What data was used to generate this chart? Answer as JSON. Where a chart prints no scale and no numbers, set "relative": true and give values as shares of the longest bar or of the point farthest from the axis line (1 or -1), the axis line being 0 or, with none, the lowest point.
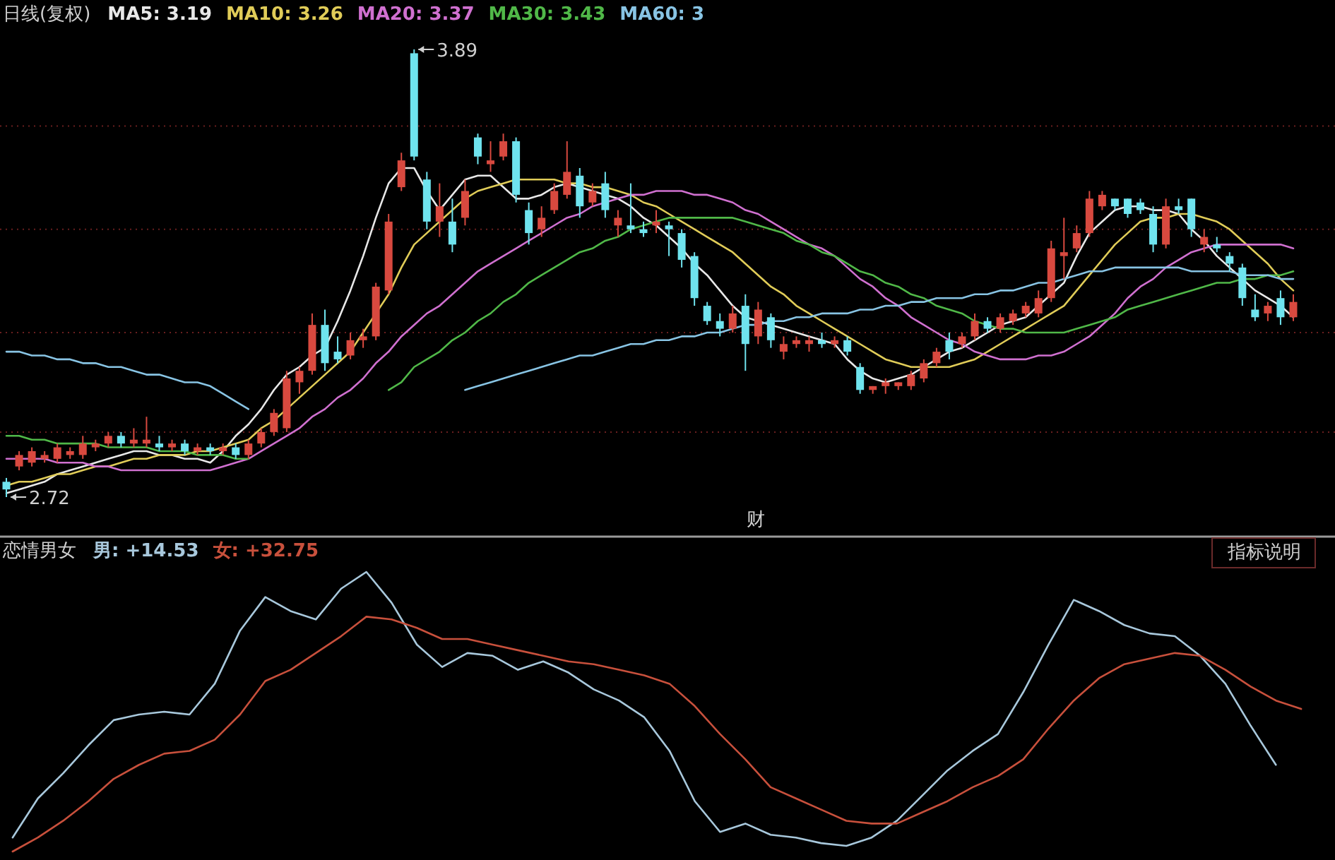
{
  "chart_data": [
    {
      "type": "candlestick",
      "title": "日线(复权)",
      "yticks": [
        {
          "value": 3.69,
          "label": null
        },
        {
          "value": 3.42,
          "label": null
        },
        {
          "value": 3.15,
          "label": null
        },
        {
          "value": 2.89,
          "label": null
        }
      ],
      "grid": "y",
      "categories": [
        null,
        null,
        null,
        null,
        null,
        null,
        null,
        null,
        null,
        null,
        null,
        null,
        null,
        null,
        null,
        null,
        null,
        null,
        null,
        null,
        null,
        null,
        null,
        null,
        null,
        null,
        null,
        null,
        null,
        null,
        null,
        null,
        null,
        null,
        null,
        null,
        null,
        null,
        null,
        null,
        null,
        null,
        null,
        null,
        null,
        null,
        null,
        null,
        null,
        null,
        null,
        null,
        null,
        null,
        null,
        null,
        null,
        null,
        null,
        null,
        null,
        null,
        null,
        null,
        null,
        null,
        null,
        null,
        null,
        null,
        null,
        null,
        null,
        null,
        null,
        null,
        null,
        null,
        null,
        null,
        null,
        null,
        null,
        null,
        null,
        null,
        null,
        null,
        null,
        null,
        null,
        null,
        null,
        null,
        null,
        null,
        null,
        null,
        null,
        null,
        null,
        null
      ],
      "ohlc": [
        [
          2.76,
          2.77,
          2.72,
          2.74
        ],
        [
          2.8,
          2.84,
          2.79,
          2.83
        ],
        [
          2.81,
          2.85,
          2.8,
          2.84
        ],
        [
          2.82,
          2.84,
          2.81,
          2.83
        ],
        [
          2.82,
          2.86,
          2.81,
          2.85
        ],
        [
          2.83,
          2.85,
          2.82,
          2.84
        ],
        [
          2.83,
          2.88,
          2.82,
          2.86
        ],
        [
          2.85,
          2.87,
          2.84,
          2.86
        ],
        [
          2.86,
          2.89,
          2.85,
          2.88
        ],
        [
          2.88,
          2.89,
          2.85,
          2.86
        ],
        [
          2.86,
          2.9,
          2.85,
          2.87
        ],
        [
          2.86,
          2.93,
          2.85,
          2.87
        ],
        [
          2.86,
          2.88,
          2.84,
          2.85
        ],
        [
          2.85,
          2.87,
          2.84,
          2.86
        ],
        [
          2.86,
          2.87,
          2.83,
          2.84
        ],
        [
          2.84,
          2.86,
          2.83,
          2.85
        ],
        [
          2.85,
          2.86,
          2.83,
          2.84
        ],
        [
          2.84,
          2.86,
          2.83,
          2.85
        ],
        [
          2.85,
          2.86,
          2.82,
          2.83
        ],
        [
          2.83,
          2.87,
          2.82,
          2.86
        ],
        [
          2.86,
          2.9,
          2.85,
          2.89
        ],
        [
          2.89,
          2.95,
          2.88,
          2.94
        ],
        [
          2.9,
          3.05,
          2.89,
          3.03
        ],
        [
          3.02,
          3.06,
          2.99,
          3.05
        ],
        [
          3.05,
          3.2,
          3.04,
          3.17
        ],
        [
          3.17,
          3.21,
          3.05,
          3.07
        ],
        [
          3.1,
          3.14,
          3.07,
          3.08
        ],
        [
          3.09,
          3.15,
          3.08,
          3.13
        ],
        [
          3.13,
          3.16,
          3.11,
          3.14
        ],
        [
          3.14,
          3.28,
          3.13,
          3.27
        ],
        [
          3.26,
          3.46,
          3.25,
          3.44
        ],
        [
          3.53,
          3.62,
          3.52,
          3.6
        ],
        [
          3.88,
          3.89,
          3.6,
          3.61
        ],
        [
          3.55,
          3.57,
          3.42,
          3.44
        ],
        [
          3.44,
          3.54,
          3.4,
          3.48
        ],
        [
          3.44,
          3.5,
          3.36,
          3.38
        ],
        [
          3.45,
          3.55,
          3.43,
          3.52
        ],
        [
          3.66,
          3.67,
          3.59,
          3.61
        ],
        [
          3.59,
          3.65,
          3.57,
          3.6
        ],
        [
          3.61,
          3.67,
          3.6,
          3.65
        ],
        [
          3.65,
          3.66,
          3.49,
          3.51
        ],
        [
          3.47,
          3.49,
          3.38,
          3.41
        ],
        [
          3.42,
          3.48,
          3.4,
          3.45
        ],
        [
          3.47,
          3.54,
          3.46,
          3.52
        ],
        [
          3.51,
          3.65,
          3.5,
          3.57
        ],
        [
          3.56,
          3.58,
          3.45,
          3.48
        ],
        [
          3.49,
          3.54,
          3.48,
          3.52
        ],
        [
          3.54,
          3.57,
          3.45,
          3.47
        ],
        [
          3.43,
          3.47,
          3.4,
          3.45
        ],
        [
          3.43,
          3.54,
          3.41,
          3.42
        ],
        [
          3.42,
          3.44,
          3.4,
          3.41
        ],
        [
          3.43,
          3.47,
          3.41,
          3.44
        ],
        [
          3.43,
          3.44,
          3.35,
          3.42
        ],
        [
          3.41,
          3.42,
          3.32,
          3.34
        ],
        [
          3.35,
          3.36,
          3.22,
          3.24
        ],
        [
          3.22,
          3.23,
          3.17,
          3.18
        ],
        [
          3.18,
          3.2,
          3.14,
          3.16
        ],
        [
          3.16,
          3.22,
          3.15,
          3.2
        ],
        [
          3.22,
          3.25,
          3.05,
          3.12
        ],
        [
          3.14,
          3.23,
          3.12,
          3.21
        ],
        [
          3.19,
          3.2,
          3.11,
          3.13
        ],
        [
          3.1,
          3.14,
          3.08,
          3.12
        ],
        [
          3.12,
          3.14,
          3.11,
          3.13
        ],
        [
          3.12,
          3.14,
          3.1,
          3.13
        ],
        [
          3.13,
          3.15,
          3.11,
          3.12
        ],
        [
          3.12,
          3.14,
          3.11,
          3.13
        ],
        [
          3.13,
          3.14,
          3.09,
          3.1
        ],
        [
          3.06,
          3.07,
          2.99,
          3.0
        ],
        [
          3.0,
          3.01,
          2.99,
          3.01
        ],
        [
          3.01,
          3.03,
          2.99,
          3.02
        ],
        [
          3.01,
          3.02,
          3.0,
          3.02
        ],
        [
          3.01,
          3.05,
          3.0,
          3.04
        ],
        [
          3.03,
          3.08,
          3.02,
          3.07
        ],
        [
          3.07,
          3.11,
          3.06,
          3.1
        ],
        [
          3.13,
          3.15,
          3.08,
          3.1
        ],
        [
          3.12,
          3.15,
          3.11,
          3.14
        ],
        [
          3.14,
          3.2,
          3.13,
          3.18
        ],
        [
          3.18,
          3.19,
          3.15,
          3.16
        ],
        [
          3.16,
          3.2,
          3.15,
          3.19
        ],
        [
          3.18,
          3.21,
          3.17,
          3.2
        ],
        [
          3.2,
          3.23,
          3.19,
          3.22
        ],
        [
          3.2,
          3.26,
          3.19,
          3.24
        ],
        [
          3.24,
          3.39,
          3.23,
          3.37
        ],
        [
          3.35,
          3.45,
          3.29,
          3.36
        ],
        [
          3.37,
          3.43,
          3.36,
          3.41
        ],
        [
          3.41,
          3.52,
          3.4,
          3.5
        ],
        [
          3.48,
          3.52,
          3.47,
          3.51
        ],
        [
          3.5,
          3.5,
          3.47,
          3.48
        ],
        [
          3.5,
          3.5,
          3.45,
          3.46
        ],
        [
          3.49,
          3.5,
          3.46,
          3.47
        ],
        [
          3.46,
          3.48,
          3.36,
          3.38
        ],
        [
          3.38,
          3.5,
          3.37,
          3.48
        ],
        [
          3.48,
          3.5,
          3.46,
          3.47
        ],
        [
          3.5,
          3.5,
          3.4,
          3.42
        ],
        [
          3.38,
          3.42,
          3.36,
          3.4
        ],
        [
          3.38,
          3.4,
          3.36,
          3.37
        ],
        [
          3.35,
          3.36,
          3.31,
          3.33
        ],
        [
          3.32,
          3.33,
          3.22,
          3.24
        ],
        [
          3.21,
          3.25,
          3.18,
          3.19
        ],
        [
          3.2,
          3.23,
          3.18,
          3.22
        ],
        [
          3.24,
          3.26,
          3.17,
          3.19
        ],
        [
          3.19,
          3.25,
          3.18,
          3.23
        ]
      ],
      "series": [
        {
          "name": "MA5: 3.19",
          "type": "line",
          "color": "#e8e8e8",
          "values": [
            2.73,
            2.74,
            2.75,
            2.76,
            2.78,
            2.79,
            2.8,
            2.81,
            2.82,
            2.83,
            2.84,
            2.84,
            2.83,
            2.83,
            2.82,
            2.82,
            2.81,
            2.84,
            2.88,
            2.91,
            2.95,
            3.0,
            3.04,
            3.06,
            3.09,
            3.11,
            3.18,
            3.26,
            3.35,
            3.45,
            3.54,
            3.58,
            3.58,
            3.52,
            3.47,
            3.51,
            3.55,
            3.56,
            3.56,
            3.53,
            3.5,
            3.5,
            3.51,
            3.53,
            3.54,
            3.53,
            3.52,
            3.51,
            3.5,
            3.48,
            3.45,
            3.43,
            3.4,
            3.37,
            3.33,
            3.3,
            3.26,
            3.22,
            3.19,
            3.18,
            3.17,
            3.16,
            3.15,
            3.14,
            3.13,
            3.12,
            3.08,
            3.05,
            3.03,
            3.02,
            3.03,
            3.04,
            3.06,
            3.08,
            3.1,
            3.11,
            3.13,
            3.15,
            3.17,
            3.18,
            3.19,
            3.22,
            3.25,
            3.28,
            3.35,
            3.41,
            3.44,
            3.47,
            3.48,
            3.48,
            3.47,
            3.47,
            3.46,
            3.42,
            3.39,
            3.35,
            3.32,
            3.29,
            3.26,
            3.24,
            3.22,
            3.19
          ]
        },
        {
          "name": "MA10: 3.26",
          "type": "line",
          "color": "#e0cc58",
          "values": [
            2.75,
            2.76,
            2.76,
            2.77,
            2.78,
            2.78,
            2.79,
            2.8,
            2.8,
            2.81,
            2.82,
            2.82,
            2.83,
            2.83,
            2.83,
            2.84,
            2.84,
            2.85,
            2.86,
            2.87,
            2.9,
            2.92,
            2.95,
            2.98,
            3.01,
            3.04,
            3.07,
            3.1,
            3.15,
            3.2,
            3.25,
            3.32,
            3.38,
            3.41,
            3.44,
            3.47,
            3.5,
            3.52,
            3.53,
            3.54,
            3.55,
            3.55,
            3.55,
            3.55,
            3.54,
            3.54,
            3.53,
            3.53,
            3.52,
            3.51,
            3.49,
            3.48,
            3.46,
            3.44,
            3.42,
            3.4,
            3.38,
            3.36,
            3.33,
            3.3,
            3.27,
            3.25,
            3.22,
            3.2,
            3.18,
            3.16,
            3.14,
            3.12,
            3.1,
            3.08,
            3.07,
            3.06,
            3.06,
            3.06,
            3.06,
            3.07,
            3.08,
            3.1,
            3.12,
            3.14,
            3.16,
            3.18,
            3.2,
            3.22,
            3.26,
            3.3,
            3.34,
            3.38,
            3.41,
            3.44,
            3.45,
            3.45,
            3.46,
            3.46,
            3.45,
            3.44,
            3.42,
            3.39,
            3.36,
            3.33,
            3.29,
            3.26
          ]
        },
        {
          "name": "MA20: 3.37",
          "type": "line",
          "color": "#d070d0",
          "values": [
            2.82,
            2.82,
            2.82,
            2.82,
            2.81,
            2.81,
            2.81,
            2.8,
            2.8,
            2.79,
            2.79,
            2.79,
            2.79,
            2.79,
            2.79,
            2.79,
            2.79,
            2.8,
            2.81,
            2.82,
            2.84,
            2.86,
            2.88,
            2.9,
            2.93,
            2.95,
            2.98,
            3.0,
            3.03,
            3.07,
            3.1,
            3.14,
            3.17,
            3.2,
            3.22,
            3.25,
            3.28,
            3.31,
            3.33,
            3.35,
            3.37,
            3.39,
            3.41,
            3.43,
            3.45,
            3.46,
            3.48,
            3.49,
            3.5,
            3.51,
            3.51,
            3.52,
            3.52,
            3.52,
            3.51,
            3.51,
            3.5,
            3.49,
            3.47,
            3.46,
            3.44,
            3.42,
            3.4,
            3.38,
            3.37,
            3.35,
            3.32,
            3.29,
            3.27,
            3.24,
            3.22,
            3.19,
            3.17,
            3.15,
            3.13,
            3.12,
            3.1,
            3.09,
            3.08,
            3.08,
            3.08,
            3.09,
            3.09,
            3.1,
            3.12,
            3.14,
            3.17,
            3.2,
            3.24,
            3.27,
            3.29,
            3.32,
            3.34,
            3.36,
            3.37,
            3.38,
            3.38,
            3.38,
            3.38,
            3.38,
            3.38,
            3.37
          ]
        },
        {
          "name": "MA30: 3.43",
          "type": "line",
          "color": "#50b848",
          "values": [
            2.88,
            2.88,
            2.87,
            2.87,
            2.86,
            2.86,
            2.86,
            2.86,
            2.85,
            2.85,
            2.85,
            2.85,
            2.84,
            2.84,
            2.84,
            2.83,
            2.83,
            2.83,
            2.82,
            2.82,
            null,
            null,
            null,
            null,
            null,
            null,
            null,
            null,
            null,
            null,
            3.0,
            3.02,
            3.06,
            3.08,
            3.1,
            3.13,
            3.15,
            3.18,
            3.2,
            3.23,
            3.25,
            3.28,
            3.3,
            3.32,
            3.34,
            3.36,
            3.37,
            3.39,
            3.4,
            3.42,
            3.43,
            3.44,
            3.45,
            3.45,
            3.45,
            3.45,
            3.45,
            3.45,
            3.44,
            3.43,
            3.42,
            3.41,
            3.39,
            3.38,
            3.36,
            3.35,
            3.33,
            3.31,
            3.3,
            3.28,
            3.27,
            3.25,
            3.24,
            3.22,
            3.21,
            3.2,
            3.18,
            3.17,
            3.16,
            3.16,
            3.15,
            3.15,
            3.15,
            3.15,
            3.16,
            3.17,
            3.18,
            3.19,
            3.21,
            3.22,
            3.23,
            3.24,
            3.25,
            3.26,
            3.27,
            3.28,
            3.28,
            3.29,
            3.29,
            3.3,
            3.3,
            3.31
          ]
        },
        {
          "name": "MA60: 3",
          "type": "line",
          "color": "#88c4e4",
          "values": [
            3.1,
            3.1,
            3.09,
            3.09,
            3.08,
            3.08,
            3.07,
            3.07,
            3.06,
            3.06,
            3.05,
            3.04,
            3.04,
            3.03,
            3.02,
            3.02,
            3.01,
            2.99,
            2.97,
            2.95,
            null,
            null,
            null,
            null,
            null,
            null,
            null,
            null,
            null,
            null,
            null,
            null,
            null,
            null,
            null,
            null,
            3.0,
            3.01,
            3.02,
            3.03,
            3.04,
            3.05,
            3.06,
            3.07,
            3.08,
            3.09,
            3.09,
            3.1,
            3.11,
            3.12,
            3.12,
            3.13,
            3.13,
            3.14,
            3.14,
            3.15,
            3.15,
            3.16,
            3.17,
            3.17,
            3.18,
            3.18,
            3.19,
            3.19,
            3.2,
            3.2,
            3.2,
            3.21,
            3.21,
            3.22,
            3.22,
            3.23,
            3.23,
            3.24,
            3.24,
            3.24,
            3.25,
            3.25,
            3.26,
            3.26,
            3.27,
            3.28,
            3.28,
            3.29,
            3.3,
            3.31,
            3.31,
            3.32,
            3.32,
            3.32,
            3.32,
            3.32,
            3.32,
            3.31,
            3.31,
            3.31,
            3.31,
            3.3,
            3.3,
            3.3,
            3.29,
            3.29
          ]
        }
      ],
      "annotations": [
        "3.89",
        "2.72",
        "财"
      ]
    },
    {
      "type": "line",
      "title": "恋情男女",
      "relative": true,
      "categories": [
        null,
        null,
        null,
        null,
        null,
        null,
        null,
        null,
        null,
        null,
        null,
        null,
        null,
        null,
        null,
        null,
        null,
        null,
        null,
        null,
        null,
        null,
        null,
        null,
        null,
        null,
        null,
        null,
        null,
        null,
        null,
        null,
        null,
        null,
        null,
        null,
        null,
        null,
        null,
        null,
        null,
        null,
        null,
        null,
        null,
        null,
        null,
        null,
        null,
        null,
        null,
        null
      ],
      "series": [
        {
          "name": "男: +14.53",
          "color": "#a8c8dc",
          "values": [
            0.05,
            0.19,
            0.28,
            0.38,
            0.47,
            0.49,
            0.5,
            0.49,
            0.6,
            0.79,
            0.91,
            0.86,
            0.83,
            0.94,
            1,
            0.89,
            0.74,
            0.66,
            0.71,
            0.7,
            0.65,
            0.68,
            0.64,
            0.58,
            0.54,
            0.48,
            0.36,
            0.18,
            0.07,
            0.1,
            0.06,
            0.05,
            0.03,
            0.02,
            0.05,
            0.11,
            0.2,
            0.29,
            0.36,
            0.42,
            0.57,
            0.74,
            0.9,
            0.86,
            0.81,
            0.78,
            0.77,
            0.7,
            0.6,
            0.45,
            0.31,
            null
          ]
        },
        {
          "name": "女: +32.75",
          "color": "#c8503c",
          "values": [
            0,
            0.05,
            0.11,
            0.18,
            0.26,
            0.31,
            0.35,
            0.36,
            0.4,
            0.49,
            0.61,
            0.65,
            0.71,
            0.77,
            0.84,
            0.83,
            0.8,
            0.76,
            0.76,
            0.74,
            0.72,
            0.7,
            0.68,
            0.67,
            0.65,
            0.63,
            0.6,
            0.52,
            0.42,
            0.33,
            0.23,
            0.19,
            0.15,
            0.11,
            0.1,
            0.1,
            0.14,
            0.18,
            0.23,
            0.27,
            0.33,
            0.44,
            0.54,
            0.62,
            0.67,
            0.69,
            0.71,
            0.7,
            0.65,
            0.59,
            0.54,
            0.51
          ]
        }
      ],
      "annotations": [
        "指标说明"
      ]
    }
  ]
}
